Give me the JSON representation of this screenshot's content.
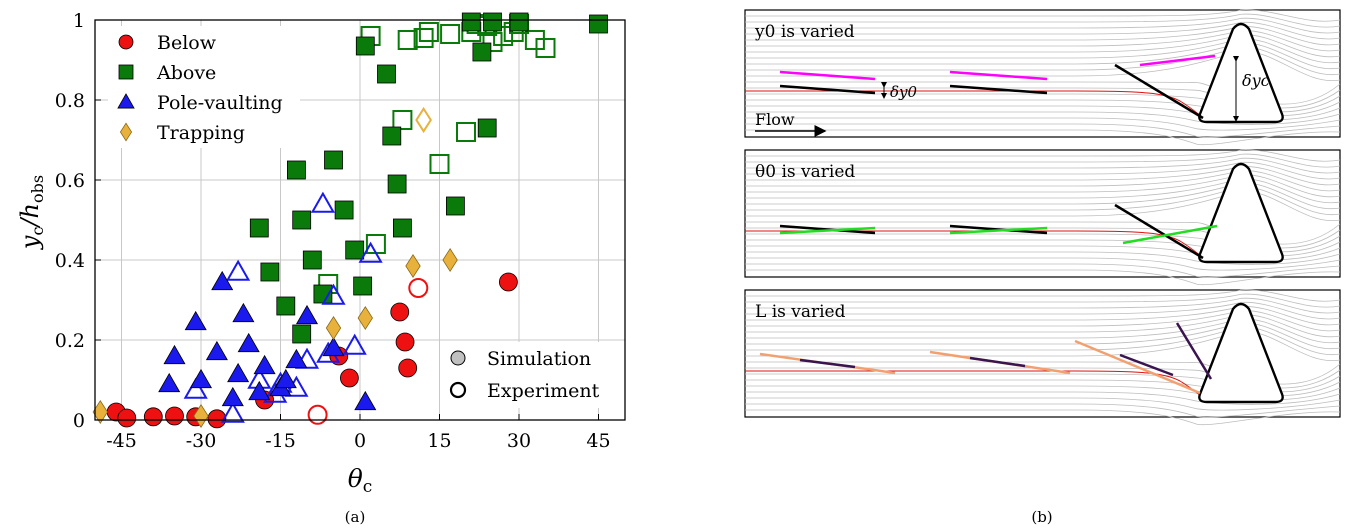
{
  "figure": {
    "caption_a": "(a)",
    "caption_b": "(b)"
  },
  "chart_data": [
    {
      "type": "scatter",
      "title": "",
      "xlabel": "θc",
      "ylabel": "yc/hobs",
      "xlim": [
        -50,
        50
      ],
      "ylim": [
        0,
        1
      ],
      "xticks": [
        -45,
        -30,
        -15,
        0,
        15,
        30,
        45
      ],
      "xtick_labels": [
        "-45",
        "-30",
        "-15",
        "0",
        "15",
        "30",
        "45"
      ],
      "yticks": [
        0,
        0.2,
        0.4,
        0.6,
        0.8,
        1
      ],
      "ytick_labels": [
        "0",
        "0.2",
        "0.4",
        "0.6",
        "0.8",
        "1"
      ],
      "grid": true,
      "legend": {
        "placement": "top-left",
        "entries": [
          "Below",
          "Above",
          "Pole-vaulting",
          "Trapping"
        ],
        "style_entries": [
          "Simulation",
          "Experiment"
        ],
        "style_placement": "bottom-right"
      },
      "series": [
        {
          "name": "Below",
          "color": "#ee1111",
          "marker": "circle",
          "simulation": [
            [
              -46,
              0.02
            ],
            [
              -44,
              0.005
            ],
            [
              -39,
              0.008
            ],
            [
              -35,
              0.01
            ],
            [
              -31,
              0.008
            ],
            [
              -27,
              0.003
            ],
            [
              -18,
              0.05
            ],
            [
              -4,
              0.16
            ],
            [
              -2,
              0.105
            ],
            [
              7.5,
              0.27
            ],
            [
              8.5,
              0.195
            ],
            [
              9,
              0.13
            ],
            [
              28,
              0.345
            ]
          ],
          "experiment": [
            [
              -8,
              0.013
            ],
            [
              11,
              0.33
            ]
          ]
        },
        {
          "name": "Above",
          "color": "#0a7a0a",
          "marker": "square",
          "simulation": [
            [
              -19,
              0.48
            ],
            [
              -17,
              0.37
            ],
            [
              -14,
              0.285
            ],
            [
              -12,
              0.625
            ],
            [
              -11,
              0.5
            ],
            [
              -11,
              0.215
            ],
            [
              -9,
              0.4
            ],
            [
              -7,
              0.315
            ],
            [
              -5,
              0.65
            ],
            [
              -3,
              0.525
            ],
            [
              -1,
              0.425
            ],
            [
              0.5,
              0.335
            ],
            [
              1,
              0.935
            ],
            [
              5,
              0.865
            ],
            [
              6,
              0.71
            ],
            [
              7,
              0.59
            ],
            [
              8,
              0.48
            ],
            [
              18,
              0.535
            ],
            [
              21,
              0.995
            ],
            [
              23,
              0.92
            ],
            [
              24,
              0.73
            ],
            [
              25,
              0.995
            ],
            [
              30,
              0.995
            ],
            [
              45,
              0.99
            ]
          ],
          "experiment": [
            [
              -6,
              0.34
            ],
            [
              3,
              0.44
            ],
            [
              2,
              0.96
            ],
            [
              8,
              0.75
            ],
            [
              9,
              0.95
            ],
            [
              12,
              0.955
            ],
            [
              13,
              0.97
            ],
            [
              15,
              0.64
            ],
            [
              17,
              0.965
            ],
            [
              20,
              0.72
            ],
            [
              21,
              0.97
            ],
            [
              22,
              0.99
            ],
            [
              24,
              0.985
            ],
            [
              25,
              0.945
            ],
            [
              27,
              0.96
            ],
            [
              29,
              0.97
            ],
            [
              30,
              0.99
            ],
            [
              33,
              0.95
            ],
            [
              35,
              0.93
            ]
          ]
        },
        {
          "name": "Pole-vaulting",
          "color": "#1a1aee",
          "marker": "triangle",
          "simulation": [
            [
              -36,
              0.09
            ],
            [
              -35,
              0.16
            ],
            [
              -31,
              0.245
            ],
            [
              -30,
              0.1
            ],
            [
              -27,
              0.17
            ],
            [
              -26,
              0.345
            ],
            [
              -24,
              0.055
            ],
            [
              -23,
              0.115
            ],
            [
              -22,
              0.265
            ],
            [
              -21,
              0.19
            ],
            [
              -19,
              0.07
            ],
            [
              -18,
              0.135
            ],
            [
              -15,
              0.08
            ],
            [
              -14,
              0.1
            ],
            [
              -12,
              0.15
            ],
            [
              -10,
              0.26
            ],
            [
              -5,
              0.18
            ],
            [
              1,
              0.045
            ]
          ],
          "experiment": [
            [
              -31,
              0.075
            ],
            [
              -24,
              0.015
            ],
            [
              -23,
              0.37
            ],
            [
              -19,
              0.1
            ],
            [
              -16,
              0.065
            ],
            [
              -15,
              0.09
            ],
            [
              -12,
              0.08
            ],
            [
              -10,
              0.15
            ],
            [
              -7,
              0.54
            ],
            [
              -6,
              0.165
            ],
            [
              -5,
              0.31
            ],
            [
              -1,
              0.185
            ],
            [
              2,
              0.415
            ]
          ]
        },
        {
          "name": "Trapping",
          "color": "#e8b13c",
          "marker": "diamond",
          "simulation": [
            [
              -49,
              0.02
            ],
            [
              -30,
              0.01
            ],
            [
              -5,
              0.23
            ],
            [
              1,
              0.255
            ],
            [
              10,
              0.385
            ],
            [
              17,
              0.4
            ]
          ],
          "experiment": [
            [
              12,
              0.75
            ]
          ]
        }
      ]
    },
    {
      "type": "other",
      "panels": [
        {
          "label": "y0 is varied",
          "extra_labels": [
            "δy0",
            "δyc",
            "Flow"
          ],
          "highlight_color": "#ff00ff"
        },
        {
          "label": "θ0 is varied",
          "extra_labels": [],
          "highlight_color": "#22dd22"
        },
        {
          "label": "L is varied",
          "extra_labels": [],
          "highlight_color": "#f2a070",
          "secondary_color": "#3a1450"
        }
      ]
    }
  ]
}
